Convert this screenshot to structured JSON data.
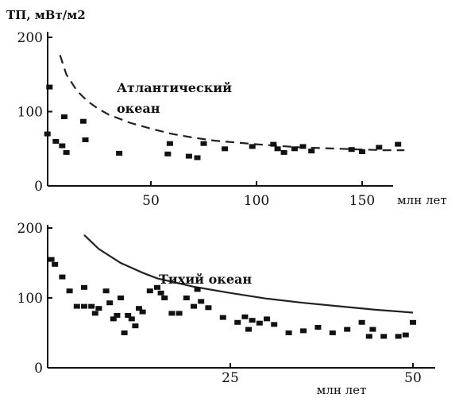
{
  "chart_data": [
    {
      "type": "scatter",
      "ylabel": "ТП, мВт/м2",
      "xlabel": "млн лет",
      "xlim": [
        0,
        180
      ],
      "ylim": [
        0,
        200
      ],
      "xticks": [
        "50",
        "100",
        "150"
      ],
      "xtick_values": [
        50,
        100,
        150
      ],
      "yticks": [
        "0",
        "100",
        "200"
      ],
      "ytick_values": [
        0,
        100,
        200
      ],
      "annotation": "Атлантический океан",
      "curve_style": "dashed",
      "curve": {
        "x": [
          7,
          10,
          15,
          20,
          25,
          30,
          40,
          50,
          60,
          70,
          80,
          100,
          120,
          140,
          160,
          170
        ],
        "y": [
          176,
          150,
          128,
          114,
          104,
          96,
          85,
          77,
          70,
          65,
          61,
          56,
          52,
          50,
          48,
          48
        ]
      },
      "points": [
        [
          1,
          70
        ],
        [
          2,
          133
        ],
        [
          5,
          60
        ],
        [
          8,
          54
        ],
        [
          9,
          93
        ],
        [
          10,
          45
        ],
        [
          18,
          87
        ],
        [
          19,
          62
        ],
        [
          35,
          44
        ],
        [
          58,
          43
        ],
        [
          59,
          57
        ],
        [
          68,
          40
        ],
        [
          72,
          38
        ],
        [
          75,
          57
        ],
        [
          85,
          50
        ],
        [
          98,
          53
        ],
        [
          108,
          56
        ],
        [
          110,
          50
        ],
        [
          113,
          45
        ],
        [
          118,
          50
        ],
        [
          122,
          53
        ],
        [
          126,
          47
        ],
        [
          145,
          49
        ],
        [
          150,
          46
        ],
        [
          158,
          52
        ],
        [
          167,
          56
        ]
      ]
    },
    {
      "type": "scatter",
      "xlabel": "млн лет",
      "xlim": [
        0,
        52
      ],
      "ylim": [
        0,
        200
      ],
      "xticks": [
        "25",
        "50"
      ],
      "xtick_values": [
        25,
        50
      ],
      "yticks": [
        "0",
        "100",
        "200"
      ],
      "ytick_values": [
        0,
        100,
        200
      ],
      "annotation": "Тихий океан",
      "curve_style": "solid",
      "curve": {
        "x": [
          5,
          7,
          10,
          13,
          15,
          20,
          25,
          30,
          35,
          40,
          45,
          50
        ],
        "y": [
          190,
          170,
          150,
          136,
          128,
          116,
          107,
          99,
          93,
          88,
          83,
          79
        ]
      },
      "points": [
        [
          0.5,
          155
        ],
        [
          1,
          148
        ],
        [
          2,
          130
        ],
        [
          3,
          110
        ],
        [
          4,
          88
        ],
        [
          5,
          88
        ],
        [
          5,
          115
        ],
        [
          6,
          88
        ],
        [
          6.5,
          78
        ],
        [
          7,
          85
        ],
        [
          8,
          110
        ],
        [
          8.5,
          93
        ],
        [
          9,
          70
        ],
        [
          9.5,
          75
        ],
        [
          10,
          100
        ],
        [
          10.5,
          50
        ],
        [
          11,
          75
        ],
        [
          11.5,
          70
        ],
        [
          12,
          60
        ],
        [
          12.5,
          85
        ],
        [
          13,
          80
        ],
        [
          14,
          110
        ],
        [
          15,
          115
        ],
        [
          15.5,
          107
        ],
        [
          16,
          100
        ],
        [
          17,
          78
        ],
        [
          18,
          78
        ],
        [
          19,
          100
        ],
        [
          20,
          88
        ],
        [
          20.5,
          112
        ],
        [
          21,
          95
        ],
        [
          22,
          86
        ],
        [
          24,
          72
        ],
        [
          26,
          65
        ],
        [
          27,
          73
        ],
        [
          27.5,
          55
        ],
        [
          28,
          68
        ],
        [
          29,
          64
        ],
        [
          30,
          70
        ],
        [
          31,
          62
        ],
        [
          33,
          50
        ],
        [
          35,
          53
        ],
        [
          37,
          58
        ],
        [
          39,
          50
        ],
        [
          41,
          55
        ],
        [
          43,
          65
        ],
        [
          44,
          45
        ],
        [
          44.5,
          55
        ],
        [
          46,
          45
        ],
        [
          48,
          45
        ],
        [
          49,
          47
        ],
        [
          50,
          65
        ]
      ]
    }
  ]
}
